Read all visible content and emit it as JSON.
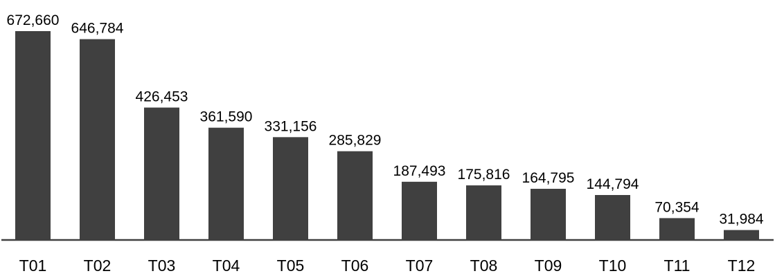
{
  "chart_data": {
    "type": "bar",
    "categories": [
      "T01",
      "T02",
      "T03",
      "T04",
      "T05",
      "T06",
      "T07",
      "T08",
      "T09",
      "T10",
      "T11",
      "T12"
    ],
    "values": [
      672660,
      646784,
      426453,
      361590,
      331156,
      285829,
      187493,
      175816,
      164795,
      144794,
      70354,
      31984
    ],
    "value_labels": [
      "672,660",
      "646,784",
      "426,453",
      "361,590",
      "331,156",
      "285,829",
      "187,493",
      "175,816",
      "164,795",
      "144,794",
      "70,354",
      "31,984"
    ],
    "ylim": [
      0,
      672660
    ],
    "grid": false,
    "data_labels": true,
    "colors": {
      "bar": "#404040",
      "axis": "#404040"
    }
  }
}
